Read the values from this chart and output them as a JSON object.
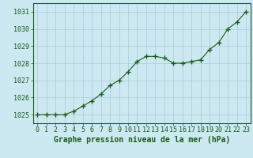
{
  "x": [
    0,
    1,
    2,
    3,
    4,
    5,
    6,
    7,
    8,
    9,
    10,
    11,
    12,
    13,
    14,
    15,
    16,
    17,
    18,
    19,
    20,
    21,
    22,
    23
  ],
  "y": [
    1025.0,
    1025.0,
    1025.0,
    1025.0,
    1025.2,
    1025.5,
    1025.8,
    1026.2,
    1026.7,
    1027.0,
    1027.5,
    1028.1,
    1028.4,
    1028.4,
    1028.3,
    1028.0,
    1028.0,
    1028.1,
    1028.2,
    1028.8,
    1029.2,
    1030.0,
    1030.4,
    1031.0
  ],
  "line_color": "#1a5c1a",
  "marker": "+",
  "marker_size": 4,
  "marker_color": "#1a5c1a",
  "bg_color": "#cce8f0",
  "grid_color": "#aaccdd",
  "ylim": [
    1024.5,
    1031.5
  ],
  "yticks": [
    1025,
    1026,
    1027,
    1028,
    1029,
    1030,
    1031
  ],
  "xticks": [
    0,
    1,
    2,
    3,
    4,
    5,
    6,
    7,
    8,
    9,
    10,
    11,
    12,
    13,
    14,
    15,
    16,
    17,
    18,
    19,
    20,
    21,
    22,
    23
  ],
  "xlabel": "Graphe pression niveau de la mer (hPa)",
  "xlabel_fontsize": 7,
  "tick_fontsize": 6,
  "tick_color": "#1a5c1a",
  "label_color": "#1a5c1a",
  "spine_color": "#1a5c1a",
  "xlim_left": -0.5,
  "xlim_right": 23.5
}
